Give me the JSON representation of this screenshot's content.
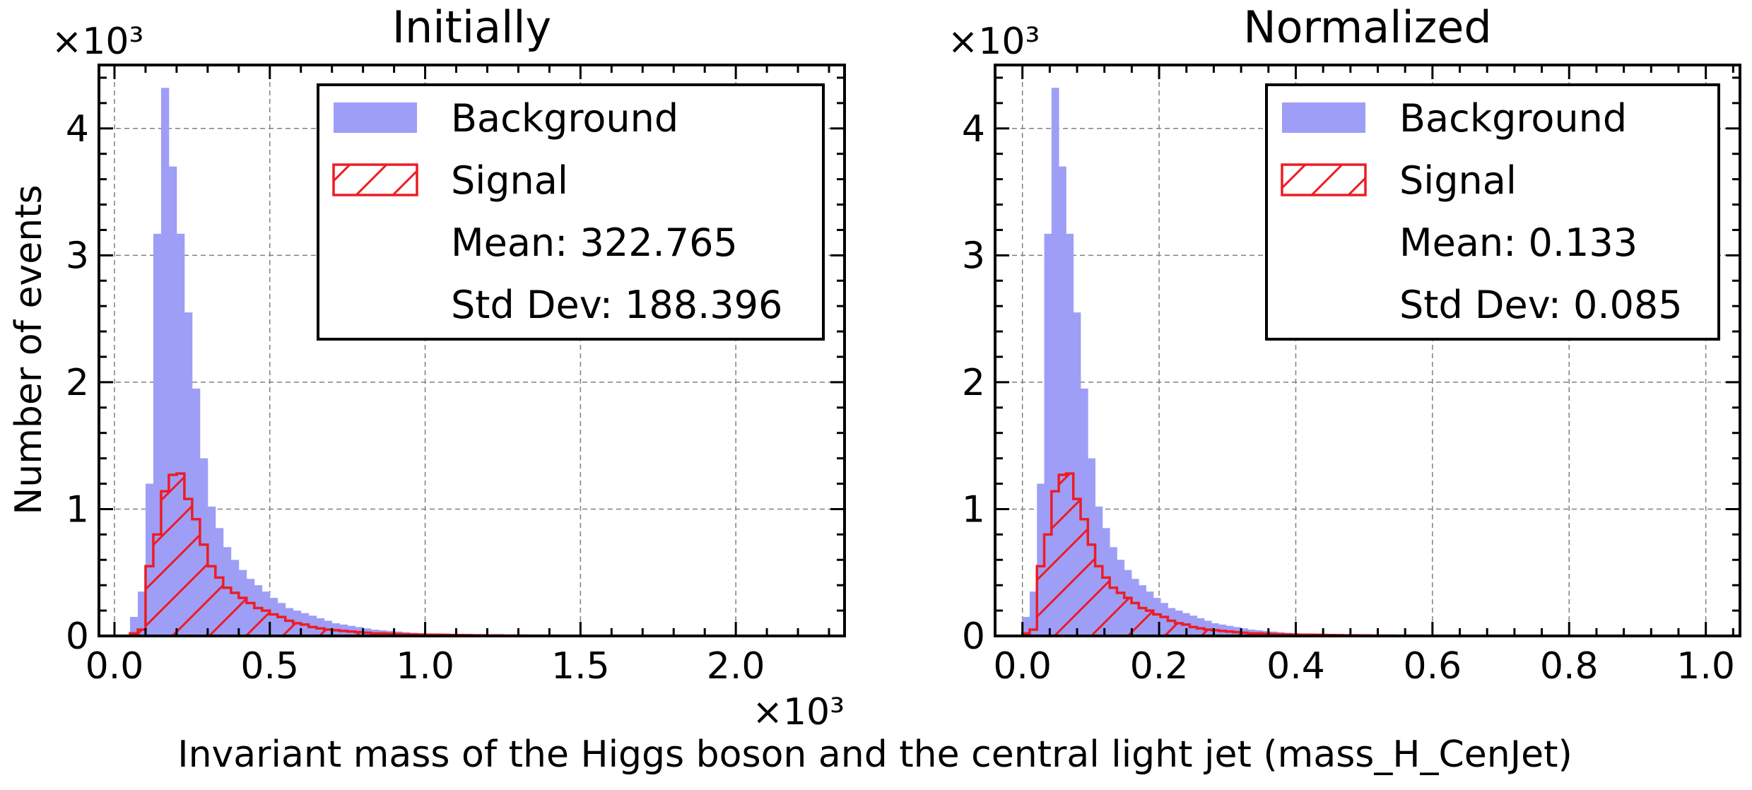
{
  "figure": {
    "xlabel": "Invariant mass of the Higgs boson and the central light jet (mass_H_CenJet)",
    "ylabel": "Number of events"
  },
  "colors": {
    "background_fill": "#9e9ef7",
    "signal_edge": "#ed1c24",
    "grid": "#808080"
  },
  "chart_data": [
    {
      "type": "histogram",
      "title": "Initially",
      "x_multiplier": "×10³",
      "y_multiplier": "×10³",
      "xlim": [
        -0.05,
        2.35
      ],
      "ylim": [
        0,
        4.5
      ],
      "xticks": [
        0.0,
        0.5,
        1.0,
        1.5,
        2.0
      ],
      "xtick_labels": [
        "0.0",
        "0.5",
        "1.0",
        "1.5",
        "2.0"
      ],
      "yticks": [
        0,
        1,
        2,
        3,
        4
      ],
      "ytick_labels": [
        "0",
        "1",
        "2",
        "3",
        "4"
      ],
      "grid": true,
      "legend_position": "top-right",
      "legend": {
        "background_label": "Background",
        "signal_label": "Signal",
        "mean_text": "Mean: 322.765",
        "std_text": "Std Dev: 188.396"
      },
      "series": [
        {
          "name": "Background",
          "kind": "filled",
          "bin_start": 0.05,
          "bin_width": 0.025,
          "values": [
            0.15,
            0.35,
            1.2,
            3.17,
            4.32,
            3.7,
            3.17,
            2.55,
            1.95,
            1.4,
            1.02,
            0.85,
            0.7,
            0.6,
            0.52,
            0.45,
            0.4,
            0.35,
            0.3,
            0.26,
            0.22,
            0.2,
            0.18,
            0.16,
            0.14,
            0.12,
            0.1,
            0.09,
            0.08,
            0.07,
            0.06,
            0.05,
            0.045,
            0.04,
            0.035,
            0.03,
            0.025,
            0.02,
            0.018,
            0.015,
            0.013,
            0.012,
            0.01,
            0.008,
            0.007,
            0.006,
            0.005,
            0.004,
            0.004,
            0.003,
            0.003,
            0.002,
            0.002,
            0.002,
            0.001,
            0.001,
            0.001,
            0.001,
            0.001,
            0.001,
            0.001,
            0.001,
            0.001,
            0.001,
            0.001,
            0.001,
            0.001,
            0.001,
            0.001,
            0.001,
            0.001,
            0.001,
            0.001,
            0.001,
            0.001,
            0.001,
            0.001,
            0.001,
            0.001,
            0.001,
            0.001,
            0.001,
            0.001,
            0.001,
            0.001,
            0.001
          ]
        },
        {
          "name": "Signal",
          "kind": "hatched-step",
          "bin_start": 0.05,
          "bin_width": 0.025,
          "values": [
            0.02,
            0.05,
            0.55,
            0.8,
            1.14,
            1.27,
            1.28,
            1.08,
            0.92,
            0.72,
            0.55,
            0.46,
            0.38,
            0.34,
            0.3,
            0.26,
            0.22,
            0.2,
            0.17,
            0.15,
            0.12,
            0.1,
            0.09,
            0.07,
            0.06,
            0.05,
            0.045,
            0.04,
            0.035,
            0.03,
            0.025,
            0.02,
            0.02,
            0.018,
            0.015,
            0.013,
            0.012,
            0.011,
            0.01,
            0.01,
            0.009,
            0.008,
            0.007,
            0.006,
            0.005,
            0.005,
            0.004,
            0.004,
            0.003,
            0.003,
            0.003,
            0.002,
            0.002,
            0.002,
            0.002,
            0.001,
            0.001,
            0.001,
            0.001,
            0.001,
            0.001,
            0.001,
            0.001,
            0.001,
            0.001,
            0.001,
            0.001,
            0.001,
            0.001,
            0.001,
            0.001,
            0.001,
            0.001,
            0.001,
            0.001,
            0.001,
            0.001,
            0.001,
            0.001,
            0.001,
            0.001,
            0.001,
            0.001,
            0.001,
            0.001,
            0.001
          ]
        }
      ]
    },
    {
      "type": "histogram",
      "title": "Normalized",
      "y_multiplier": "×10³",
      "xlim": [
        -0.04,
        1.05
      ],
      "ylim": [
        0,
        4.5
      ],
      "xticks": [
        0.0,
        0.2,
        0.4,
        0.6,
        0.8,
        1.0
      ],
      "xtick_labels": [
        "0.0",
        "0.2",
        "0.4",
        "0.6",
        "0.8",
        "1.0"
      ],
      "yticks": [
        0,
        1,
        2,
        3,
        4
      ],
      "ytick_labels": [
        "0",
        "1",
        "2",
        "3",
        "4"
      ],
      "grid": true,
      "legend_position": "top-right",
      "legend": {
        "background_label": "Background",
        "signal_label": "Signal",
        "mean_text": "Mean: 0.133",
        "std_text": "Std Dev: 0.085"
      },
      "series": [
        {
          "name": "Background",
          "kind": "filled",
          "bin_start": 0.0,
          "bin_width": 0.01064,
          "values": [
            0.15,
            0.35,
            1.2,
            3.17,
            4.32,
            3.7,
            3.17,
            2.55,
            1.95,
            1.4,
            1.02,
            0.85,
            0.7,
            0.6,
            0.52,
            0.45,
            0.4,
            0.35,
            0.3,
            0.26,
            0.22,
            0.2,
            0.18,
            0.16,
            0.14,
            0.12,
            0.1,
            0.09,
            0.08,
            0.07,
            0.06,
            0.05,
            0.045,
            0.04,
            0.035,
            0.03,
            0.025,
            0.02,
            0.018,
            0.015,
            0.013,
            0.012,
            0.01,
            0.008,
            0.007,
            0.006,
            0.005,
            0.004,
            0.004,
            0.003,
            0.003,
            0.002,
            0.002,
            0.002,
            0.001,
            0.001,
            0.001,
            0.001,
            0.001,
            0.001,
            0.001,
            0.001,
            0.001,
            0.001,
            0.001,
            0.001,
            0.001,
            0.001,
            0.001,
            0.001,
            0.001,
            0.001,
            0.001,
            0.001,
            0.001,
            0.001,
            0.001,
            0.001,
            0.001,
            0.001,
            0.001,
            0.001,
            0.001,
            0.001,
            0.001,
            0.001,
            0.001,
            0.001,
            0.001,
            0.001,
            0.001,
            0.001,
            0.001,
            0.001
          ]
        },
        {
          "name": "Signal",
          "kind": "hatched-step",
          "bin_start": 0.0,
          "bin_width": 0.01064,
          "values": [
            0.02,
            0.05,
            0.55,
            0.8,
            1.14,
            1.27,
            1.28,
            1.08,
            0.92,
            0.72,
            0.55,
            0.46,
            0.38,
            0.34,
            0.3,
            0.26,
            0.22,
            0.2,
            0.17,
            0.15,
            0.12,
            0.1,
            0.09,
            0.07,
            0.06,
            0.05,
            0.045,
            0.04,
            0.035,
            0.03,
            0.025,
            0.02,
            0.02,
            0.018,
            0.015,
            0.013,
            0.012,
            0.011,
            0.01,
            0.01,
            0.009,
            0.008,
            0.007,
            0.006,
            0.005,
            0.005,
            0.004,
            0.004,
            0.003,
            0.003,
            0.003,
            0.002,
            0.002,
            0.002,
            0.002,
            0.001,
            0.001,
            0.001,
            0.001,
            0.001,
            0.001,
            0.001,
            0.001,
            0.001,
            0.001,
            0.001,
            0.001,
            0.001,
            0.001,
            0.001,
            0.001,
            0.001,
            0.001,
            0.001,
            0.001,
            0.001,
            0.001,
            0.001,
            0.001,
            0.001,
            0.001,
            0.001,
            0.001,
            0.001,
            0.001,
            0.001,
            0.001,
            0.001,
            0.001,
            0.001,
            0.001,
            0.001,
            0.001,
            0.001
          ]
        }
      ]
    }
  ]
}
